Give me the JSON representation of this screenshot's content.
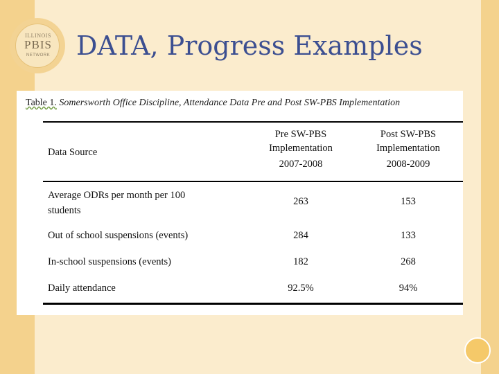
{
  "slide": {
    "title": "DATA, Progress Examples"
  },
  "logo": {
    "line1": "ILLINOIS",
    "line2": "PBIS",
    "line3": "NETWORK"
  },
  "table": {
    "caption_label": "Table 1.",
    "caption_text": "Somersworth Office Discipline, Attendance Data Pre and Post SW-PBS Implementation",
    "headers": {
      "data_source": "Data Source",
      "pre_line1": "Pre SW-PBS",
      "pre_line2": "Implementation",
      "pre_years": "2007-2008",
      "post_line1": "Post SW-PBS",
      "post_line2": "Implementation",
      "post_years": "2008-2009"
    },
    "rows": [
      {
        "label_line1": "Average ODRs per month per 100",
        "label_line2": "students",
        "pre": "263",
        "post": "153"
      },
      {
        "label": "Out of school suspensions  (events)",
        "pre": "284",
        "post": "133"
      },
      {
        "label": "In-school suspensions  (events)",
        "pre": "182",
        "post": "268"
      },
      {
        "label": "Daily attendance",
        "pre": "92.5%",
        "post": "94%"
      }
    ]
  }
}
